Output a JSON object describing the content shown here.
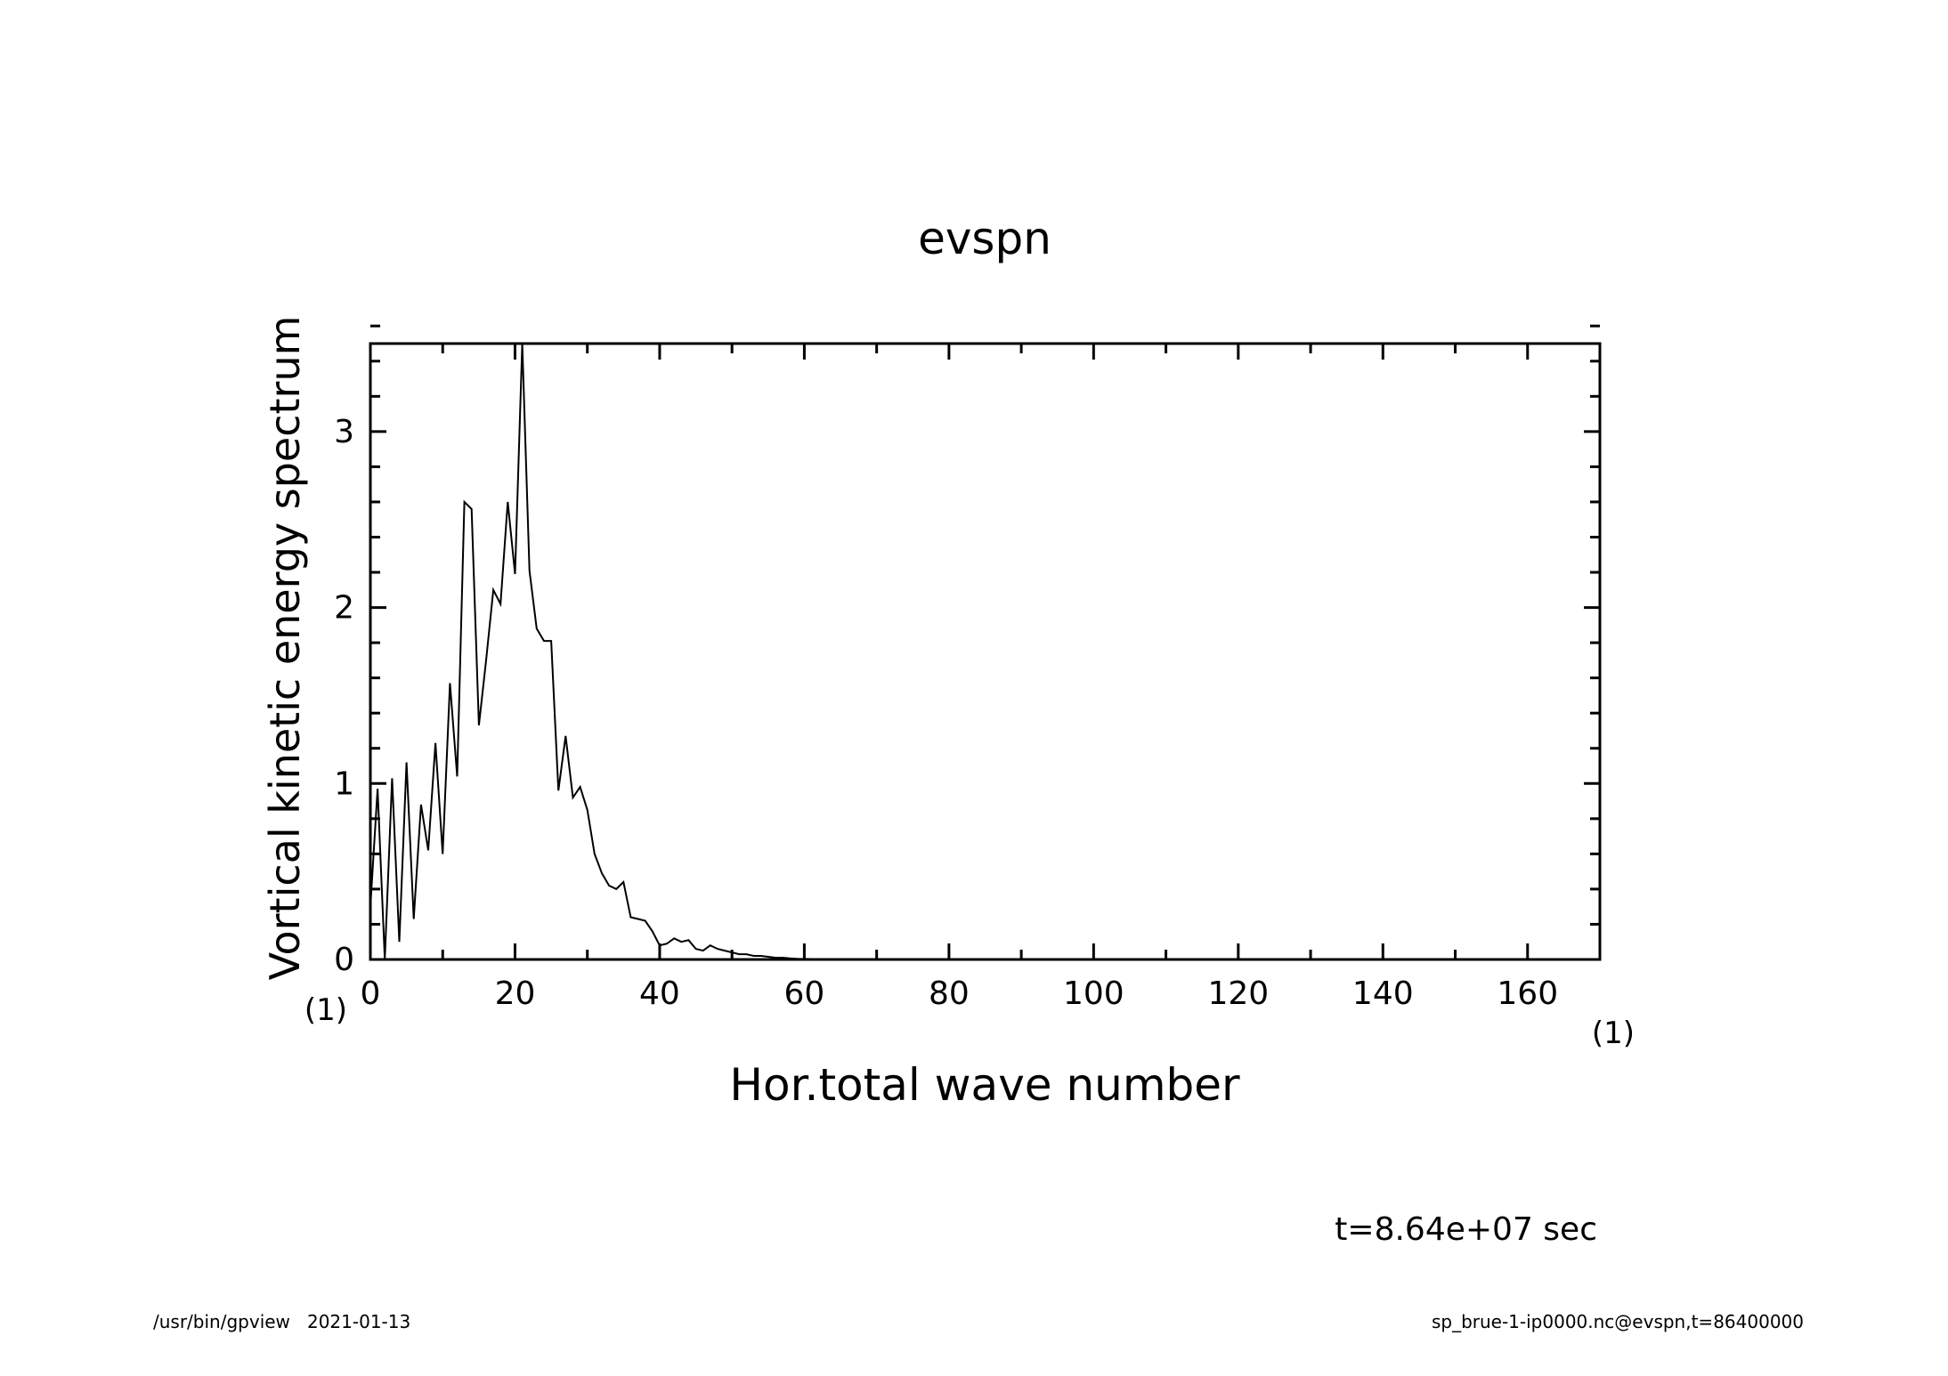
{
  "chart_data": {
    "type": "line",
    "title": "evspn",
    "xlabel": "Hor.total wave number",
    "ylabel": "Vortical kinetic energy spectrum",
    "x_unit": "(1)",
    "y_unit": "(1)",
    "xlim": [
      0,
      170
    ],
    "ylim": [
      0,
      3.5
    ],
    "x_ticks": [
      "0",
      "20",
      "40",
      "60",
      "80",
      "100",
      "120",
      "140",
      "160"
    ],
    "y_ticks": [
      "0",
      "1",
      "2",
      "3"
    ],
    "grid": false,
    "series": [
      {
        "x": [
          0,
          1,
          2,
          3,
          4,
          5,
          6,
          7,
          8,
          9,
          10,
          11,
          12,
          13,
          14,
          15,
          16,
          17,
          18,
          19,
          20,
          21,
          22,
          23,
          24,
          25,
          26,
          27,
          28,
          29,
          30,
          31,
          32,
          33,
          34,
          35,
          36,
          37,
          38,
          39,
          40,
          41,
          42,
          43,
          44,
          45,
          46,
          47,
          48,
          49,
          50,
          51,
          52,
          53,
          54,
          55,
          56,
          57,
          58,
          59,
          60,
          62,
          65,
          70,
          80,
          100,
          120,
          140,
          160,
          170
        ],
        "y": [
          0.3,
          0.97,
          0.0,
          1.03,
          0.1,
          1.12,
          0.23,
          0.88,
          0.62,
          1.23,
          0.6,
          1.57,
          1.04,
          2.6,
          2.56,
          1.33,
          1.7,
          2.1,
          2.02,
          2.6,
          2.19,
          3.5,
          2.21,
          1.88,
          1.81,
          1.81,
          0.96,
          1.27,
          0.92,
          0.98,
          0.85,
          0.6,
          0.49,
          0.42,
          0.4,
          0.44,
          0.24,
          0.23,
          0.22,
          0.16,
          0.08,
          0.09,
          0.12,
          0.1,
          0.11,
          0.06,
          0.05,
          0.08,
          0.06,
          0.05,
          0.04,
          0.03,
          0.03,
          0.02,
          0.02,
          0.015,
          0.01,
          0.01,
          0.006,
          0.004,
          0.003,
          0.002,
          0.001,
          0.0,
          0.0,
          0.0,
          0.0,
          0.0,
          0.0,
          0.0
        ]
      }
    ]
  },
  "annotations": {
    "time": "t=8.64e+07 sec",
    "footer_left": "/usr/bin/gpview   2021-01-13",
    "footer_right": "sp_brue-1-ip0000.nc@evspn,t=86400000"
  }
}
